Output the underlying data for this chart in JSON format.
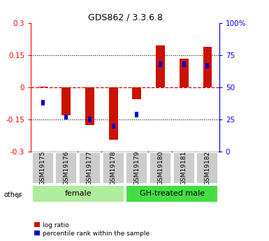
{
  "title": "GDS862 / 3.3.6.8",
  "samples": [
    "GSM19175",
    "GSM19176",
    "GSM19177",
    "GSM19178",
    "GSM19179",
    "GSM19180",
    "GSM19181",
    "GSM19182"
  ],
  "log_ratio": [
    0.005,
    -0.13,
    -0.175,
    -0.245,
    -0.055,
    0.195,
    0.135,
    0.19
  ],
  "pct_rank_raw": [
    38,
    27,
    25,
    20,
    29,
    68,
    68,
    67
  ],
  "ylim": [
    -0.3,
    0.3
  ],
  "yticks": [
    -0.3,
    -0.15,
    0,
    0.15,
    0.3
  ],
  "ytick_labels_left": [
    "-0.3",
    "-0.15",
    "0",
    "0.15",
    "0.3"
  ],
  "ytick_labels_right": [
    "0",
    "25",
    "50",
    "75",
    "100%"
  ],
  "groups": [
    {
      "label": "female",
      "start": 0,
      "end": 3,
      "color": "#aeed9e"
    },
    {
      "label": "GH-treated male",
      "start": 4,
      "end": 7,
      "color": "#44dd44"
    }
  ],
  "bar_color": "#cc1100",
  "dot_color": "#0000cc",
  "legend_items": [
    "log ratio",
    "percentile rank within the sample"
  ],
  "zero_line_color": "#cc0000",
  "title_fontsize": 9,
  "axis_fontsize": 7.5,
  "label_fontsize": 6.5,
  "group_fontsize": 8
}
